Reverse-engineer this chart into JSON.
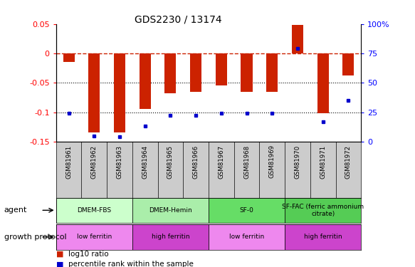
{
  "title": "GDS2230 / 13174",
  "samples": [
    "GSM81961",
    "GSM81962",
    "GSM81963",
    "GSM81964",
    "GSM81965",
    "GSM81966",
    "GSM81967",
    "GSM81968",
    "GSM81969",
    "GSM81970",
    "GSM81971",
    "GSM81972"
  ],
  "log10_ratio": [
    -0.015,
    -0.135,
    -0.135,
    -0.095,
    -0.068,
    -0.065,
    -0.055,
    -0.065,
    -0.065,
    0.048,
    -0.102,
    -0.038
  ],
  "percentile_rank": [
    24,
    5,
    4,
    13,
    22,
    22,
    24,
    24,
    24,
    79,
    17,
    35
  ],
  "ylim_left": [
    -0.15,
    0.05
  ],
  "ylim_right": [
    0,
    100
  ],
  "bar_color": "#cc2200",
  "dot_color": "#0000cc",
  "left_yticks": [
    0.05,
    0.0,
    -0.05,
    -0.1,
    -0.15
  ],
  "right_yticks": [
    100,
    75,
    50,
    25,
    0
  ],
  "dotted_lines": [
    -0.05,
    -0.1
  ],
  "agent_groups": [
    {
      "label": "DMEM-FBS",
      "start": 0,
      "end": 3,
      "color": "#ccffcc"
    },
    {
      "label": "DMEM-Hemin",
      "start": 3,
      "end": 6,
      "color": "#aaeeaa"
    },
    {
      "label": "SF-0",
      "start": 6,
      "end": 9,
      "color": "#66dd66"
    },
    {
      "label": "SF-FAC (ferric ammonium\ncitrate)",
      "start": 9,
      "end": 12,
      "color": "#55cc55"
    }
  ],
  "protocol_groups": [
    {
      "label": "low ferritin",
      "start": 0,
      "end": 3,
      "color": "#ee88ee"
    },
    {
      "label": "high ferritin",
      "start": 3,
      "end": 6,
      "color": "#cc44cc"
    },
    {
      "label": "low ferritin",
      "start": 6,
      "end": 9,
      "color": "#ee88ee"
    },
    {
      "label": "high ferritin",
      "start": 9,
      "end": 12,
      "color": "#cc44cc"
    }
  ],
  "left_ytick_labels": [
    "0.05",
    "0",
    "-0.05",
    "-0.1",
    "-0.15"
  ],
  "right_ytick_labels": [
    "100%",
    "75",
    "50",
    "25",
    "0"
  ]
}
